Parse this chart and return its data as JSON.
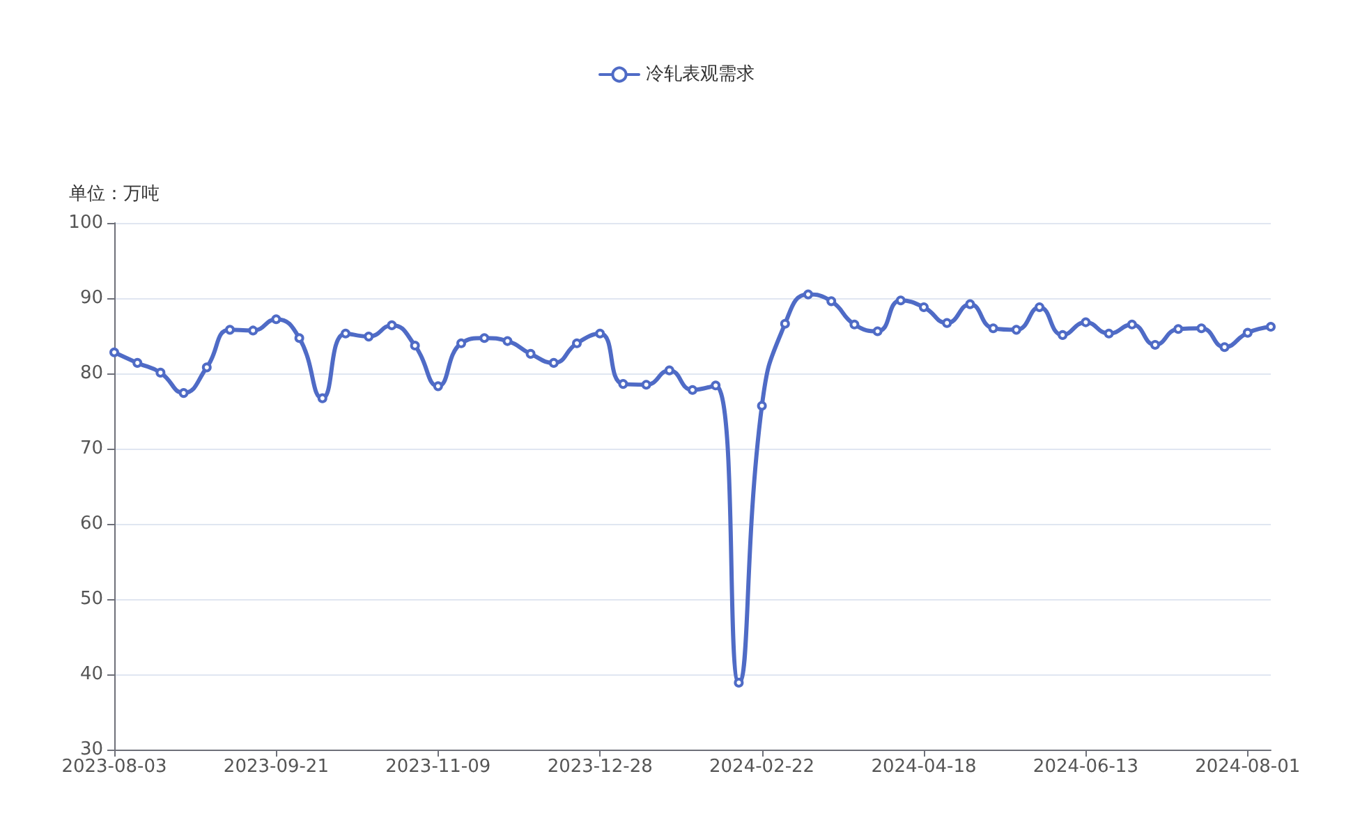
{
  "chart_data": {
    "type": "line",
    "ylabel": "单位：万吨",
    "categories": [
      "2023-08-03",
      null,
      null,
      null,
      null,
      null,
      null,
      "2023-09-21",
      null,
      null,
      null,
      null,
      null,
      null,
      "2023-11-09",
      null,
      null,
      null,
      null,
      null,
      null,
      "2023-12-28",
      null,
      null,
      null,
      null,
      null,
      null,
      "2024-02-22",
      null,
      null,
      null,
      null,
      null,
      null,
      "2024-04-18",
      null,
      null,
      null,
      null,
      null,
      null,
      "2024-06-13",
      null,
      null,
      null,
      null,
      null,
      null,
      "2024-08-01",
      null
    ],
    "series": [
      {
        "name": "冷轧表观需求",
        "color": "#4f6bc6",
        "values": [
          82.8,
          81.4,
          80.1,
          77.4,
          80.8,
          85.8,
          85.7,
          87.2,
          84.7,
          76.7,
          85.3,
          84.9,
          86.4,
          83.7,
          78.3,
          84.0,
          84.7,
          84.3,
          82.6,
          81.4,
          84.0,
          85.3,
          78.6,
          78.5,
          80.4,
          77.8,
          78.4,
          38.9,
          75.7,
          86.6,
          90.5,
          89.6,
          86.5,
          85.6,
          89.7,
          88.8,
          86.7,
          89.2,
          86.0,
          85.8,
          88.8,
          85.1,
          86.8,
          85.3,
          86.5,
          83.8,
          85.9,
          86.0,
          83.5,
          85.4,
          86.2
        ]
      }
    ],
    "ylim": [
      30,
      100
    ],
    "yticks": [
      30,
      40,
      50,
      60,
      70,
      80,
      90,
      100
    ],
    "grid": "y",
    "legend": "top",
    "marker": "circle",
    "line_style": "solid"
  }
}
